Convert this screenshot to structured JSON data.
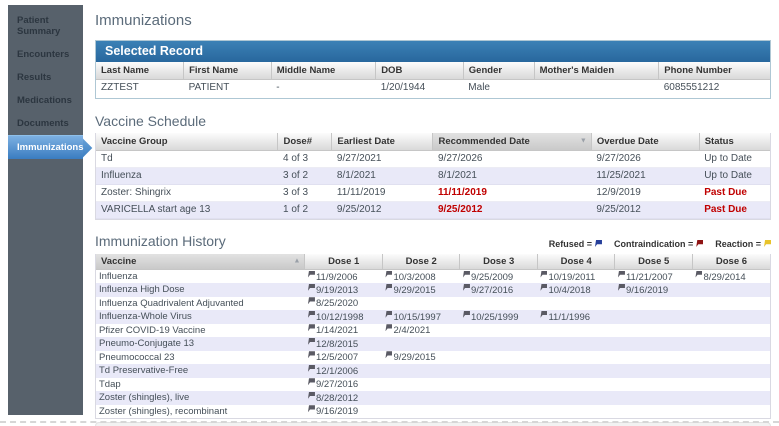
{
  "page": {
    "title": "Immunizations"
  },
  "sidebar": {
    "items": [
      {
        "label": "Patient Summary",
        "active": false
      },
      {
        "label": "Encounters",
        "active": false
      },
      {
        "label": "Results",
        "active": false
      },
      {
        "label": "Medications",
        "active": false
      },
      {
        "label": "Documents",
        "active": false
      },
      {
        "label": "Immunizations",
        "active": true
      }
    ]
  },
  "selected_record": {
    "title": "Selected Record",
    "columns": [
      "Last Name",
      "First Name",
      "Middle Name",
      "DOB",
      "Gender",
      "Mother's Maiden",
      "Phone Number"
    ],
    "row": [
      "ZZTEST",
      "PATIENT",
      "-",
      "1/20/1944",
      "Male",
      "",
      "6085551212"
    ]
  },
  "vaccine_schedule": {
    "title": "Vaccine Schedule",
    "columns": [
      "Vaccine Group",
      "Dose#",
      "Earliest Date",
      "Recommended Date",
      "Overdue Date",
      "Status"
    ],
    "sorted_column_index": 3,
    "rows": [
      {
        "cells": [
          "Td",
          "4 of 3",
          "9/27/2021",
          "9/27/2026",
          "9/27/2026",
          "Up to Date"
        ],
        "recommended_red": false,
        "status_red": false
      },
      {
        "cells": [
          "Influenza",
          "3 of 2",
          "8/1/2021",
          "8/1/2021",
          "11/25/2021",
          "Up to Date"
        ],
        "recommended_red": false,
        "status_red": false
      },
      {
        "cells": [
          "Zoster: Shingrix",
          "3 of 3",
          "11/11/2019",
          "11/11/2019",
          "12/9/2019",
          "Past Due"
        ],
        "recommended_red": true,
        "status_red": true
      },
      {
        "cells": [
          "VARICELLA start age 13",
          "1 of 2",
          "9/25/2012",
          "9/25/2012",
          "9/25/2012",
          "Past Due"
        ],
        "recommended_red": true,
        "status_red": true
      }
    ]
  },
  "immunization_history": {
    "title": "Immunization History",
    "legend": [
      {
        "label": "Refused =",
        "color": "#27409b"
      },
      {
        "label": "Contraindication =",
        "color": "#8f1414"
      },
      {
        "label": "Reaction =",
        "color": "#e8c32a"
      }
    ],
    "columns": [
      "Vaccine",
      "Dose 1",
      "Dose 2",
      "Dose 3",
      "Dose 4",
      "Dose 5",
      "Dose 6"
    ],
    "sorted_column_index": 0,
    "rows": [
      {
        "vaccine": "Influenza",
        "doses": [
          "11/9/2006",
          "10/3/2008",
          "9/25/2009",
          "10/19/2011",
          "11/21/2007",
          "8/29/2014"
        ]
      },
      {
        "vaccine": "Influenza High Dose",
        "doses": [
          "9/19/2013",
          "9/29/2015",
          "9/27/2016",
          "10/4/2018",
          "9/16/2019"
        ]
      },
      {
        "vaccine": "Influenza Quadrivalent Adjuvanted",
        "doses": [
          "8/25/2020"
        ]
      },
      {
        "vaccine": "Influenza-Whole Virus",
        "doses": [
          "10/12/1998",
          "10/15/1997",
          "10/25/1999",
          "11/1/1996"
        ]
      },
      {
        "vaccine": "Pfizer COVID-19 Vaccine",
        "doses": [
          "1/14/2021",
          "2/4/2021"
        ]
      },
      {
        "vaccine": "Pneumo-Conjugate 13",
        "doses": [
          "12/8/2015"
        ]
      },
      {
        "vaccine": "Pneumococcal 23",
        "doses": [
          "12/5/2007",
          "9/29/2015"
        ]
      },
      {
        "vaccine": "Td Preservative-Free",
        "doses": [
          "12/1/2006"
        ]
      },
      {
        "vaccine": "Tdap",
        "doses": [
          "9/27/2016"
        ]
      },
      {
        "vaccine": "Zoster (shingles), live",
        "doses": [
          "8/28/2012"
        ]
      },
      {
        "vaccine": "Zoster (shingles), recombinant",
        "doses": [
          "9/16/2019"
        ]
      }
    ]
  },
  "colors": {
    "sidebar_bg": "#57616b",
    "active_item_blue": "#3a7cc0",
    "header_bar_blue": "#2e75ad",
    "past_due_red": "#c00000",
    "row_alt_lavender": "#e9e9f8",
    "date_flag_gray": "#5a5a64"
  }
}
